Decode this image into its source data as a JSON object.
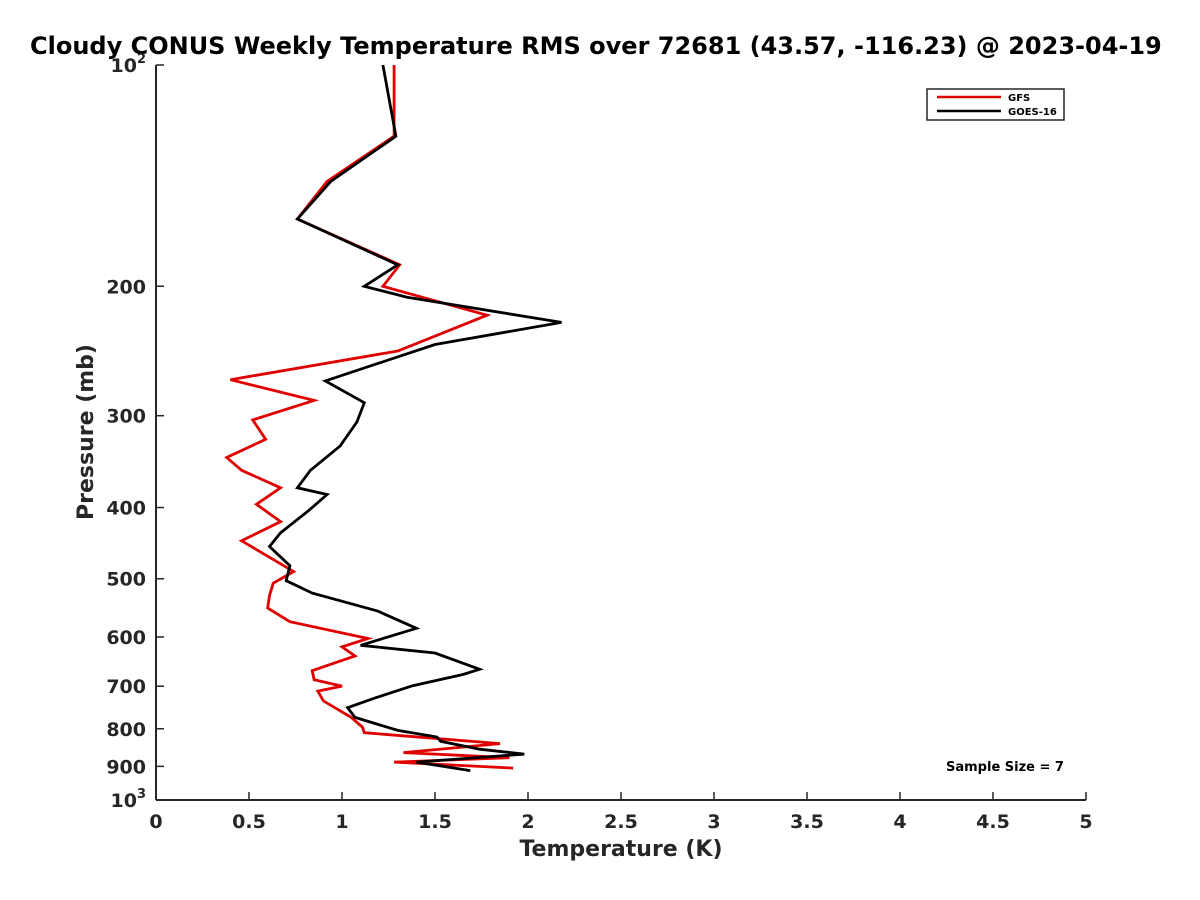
{
  "chart_data": {
    "type": "line",
    "title": "Cloudy CONUS Weekly Temperature RMS over 72681 (43.57, -116.23) @ 2023-04-19",
    "xlabel": "Temperature (K)",
    "ylabel": "Pressure (mb)",
    "xlim": [
      0,
      5
    ],
    "ylim": [
      100,
      1000
    ],
    "y_scale": "log",
    "y_reversed": false,
    "x_ticks": [
      "0",
      "0.5",
      "1",
      "1.5",
      "2",
      "2.5",
      "3",
      "3.5",
      "4",
      "4.5",
      "5"
    ],
    "x_tick_values": [
      0,
      0.5,
      1,
      1.5,
      2,
      2.5,
      3,
      3.5,
      4,
      4.5,
      5
    ],
    "y_ticks": [
      {
        "value": 100,
        "base": "10",
        "exp": "2"
      },
      {
        "value": 200,
        "label": "200"
      },
      {
        "value": 300,
        "label": "300"
      },
      {
        "value": 400,
        "label": "400"
      },
      {
        "value": 500,
        "label": "500"
      },
      {
        "value": 600,
        "label": "600"
      },
      {
        "value": 700,
        "label": "700"
      },
      {
        "value": 800,
        "label": "800"
      },
      {
        "value": 900,
        "label": "900"
      },
      {
        "value": 1000,
        "base": "10",
        "exp": "3"
      }
    ],
    "grid": false,
    "legend_position": "top-right",
    "annotation": "Sample Size = 7",
    "series": [
      {
        "name": "GFS",
        "color": "#e00000",
        "points": [
          [
            1.28,
            100
          ],
          [
            1.28,
            125
          ],
          [
            0.92,
            144
          ],
          [
            0.76,
            162
          ],
          [
            1.31,
            187
          ],
          [
            1.22,
            200
          ],
          [
            1.78,
            219
          ],
          [
            1.3,
            245
          ],
          [
            0.4,
            268
          ],
          [
            0.85,
            286
          ],
          [
            0.52,
            304
          ],
          [
            0.59,
            323
          ],
          [
            0.38,
            342
          ],
          [
            0.46,
            356
          ],
          [
            0.67,
            376
          ],
          [
            0.54,
            396
          ],
          [
            0.67,
            418
          ],
          [
            0.46,
            444
          ],
          [
            0.74,
            489
          ],
          [
            0.63,
            507
          ],
          [
            0.61,
            527
          ],
          [
            0.6,
            548
          ],
          [
            0.72,
            572
          ],
          [
            1.14,
            603
          ],
          [
            1.0,
            619
          ],
          [
            1.07,
            637
          ],
          [
            0.84,
            667
          ],
          [
            0.85,
            686
          ],
          [
            1.0,
            700
          ],
          [
            0.87,
            711
          ],
          [
            0.9,
            733
          ],
          [
            1.05,
            772
          ],
          [
            1.11,
            796
          ],
          [
            1.12,
            810
          ],
          [
            1.85,
            838
          ],
          [
            1.33,
            862
          ],
          [
            1.9,
            876
          ],
          [
            1.28,
            888
          ],
          [
            1.92,
            905
          ]
        ]
      },
      {
        "name": "GOES-16",
        "color": "#000000",
        "points": [
          [
            1.22,
            100
          ],
          [
            1.29,
            125
          ],
          [
            0.94,
            144
          ],
          [
            0.76,
            162
          ],
          [
            1.3,
            187
          ],
          [
            1.12,
            200
          ],
          [
            1.35,
            207
          ],
          [
            2.18,
            224
          ],
          [
            1.5,
            240
          ],
          [
            0.91,
            269
          ],
          [
            1.12,
            288
          ],
          [
            1.08,
            306
          ],
          [
            0.99,
            330
          ],
          [
            0.83,
            356
          ],
          [
            0.76,
            376
          ],
          [
            0.92,
            384
          ],
          [
            0.82,
            404
          ],
          [
            0.67,
            433
          ],
          [
            0.61,
            452
          ],
          [
            0.72,
            480
          ],
          [
            0.7,
            503
          ],
          [
            0.84,
            523
          ],
          [
            1.19,
            553
          ],
          [
            1.4,
            584
          ],
          [
            1.1,
            616
          ],
          [
            1.5,
            631
          ],
          [
            1.74,
            664
          ],
          [
            1.65,
            675
          ],
          [
            1.38,
            699
          ],
          [
            1.18,
            726
          ],
          [
            1.03,
            749
          ],
          [
            1.07,
            772
          ],
          [
            1.3,
            804
          ],
          [
            1.51,
            821
          ],
          [
            1.53,
            832
          ],
          [
            1.74,
            853
          ],
          [
            1.98,
            866
          ],
          [
            1.4,
            888
          ],
          [
            1.69,
            912
          ]
        ]
      }
    ]
  }
}
